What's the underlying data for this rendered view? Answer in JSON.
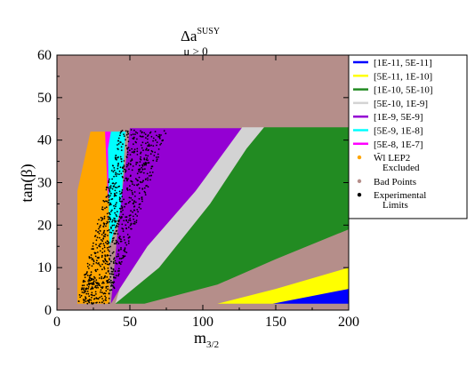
{
  "chart_data": {
    "type": "area",
    "title": {
      "base": "Δa",
      "sup": "SUSY"
    },
    "subtitle": "μ > 0",
    "xlabel": {
      "base": "m",
      "sub": "3/2"
    },
    "ylabel": "tan(β)",
    "xlim": [
      0,
      200
    ],
    "ylim": [
      0,
      60
    ],
    "x_ticks": [
      "0",
      "50",
      "100",
      "150",
      "200"
    ],
    "y_ticks": [
      "0",
      "10",
      "20",
      "30",
      "40",
      "50",
      "60"
    ],
    "background_region": {
      "name": "Bad Points",
      "color": "#b58e8a"
    },
    "regions": [
      {
        "name": "LEP2 Excluded",
        "color": "#ffa500",
        "polygon": [
          [
            14,
            1.5
          ],
          [
            14,
            28
          ],
          [
            23,
            42
          ],
          [
            33,
            42
          ],
          [
            36,
            40
          ],
          [
            36,
            1.5
          ]
        ]
      },
      {
        "name": "[5E-8, 1E-7]",
        "color": "#ff00ff",
        "polygon": [
          [
            33,
            42
          ],
          [
            37,
            42
          ],
          [
            37,
            28
          ],
          [
            35,
            26
          ]
        ]
      },
      {
        "name": "[5E-9, 1E-8]",
        "color": "#00ffff",
        "polygon": [
          [
            35,
            38
          ],
          [
            37,
            42
          ],
          [
            47,
            42
          ],
          [
            44,
            24
          ],
          [
            36,
            15
          ]
        ]
      },
      {
        "name": "[1E-9, 5E-9]",
        "color": "#9400d3",
        "polygon": [
          [
            37,
            1.5
          ],
          [
            43,
            5
          ],
          [
            62,
            15
          ],
          [
            95,
            28
          ],
          [
            128,
            42.8
          ],
          [
            50,
            42.8
          ],
          [
            42,
            20
          ]
        ]
      },
      {
        "name": "[5E-10, 1E-9]",
        "color": "#d3d3d3",
        "polygon": [
          [
            40,
            1.5
          ],
          [
            70,
            10
          ],
          [
            105,
            25
          ],
          [
            130,
            38
          ],
          [
            142,
            43
          ],
          [
            127,
            43
          ],
          [
            95,
            28
          ],
          [
            62,
            15
          ],
          [
            43,
            5
          ]
        ]
      },
      {
        "name": "[1E-10, 5E-10]",
        "color": "#228b22",
        "polygon": [
          [
            60,
            1.5
          ],
          [
            110,
            6
          ],
          [
            150,
            12
          ],
          [
            200,
            19
          ],
          [
            200,
            43
          ],
          [
            142,
            43
          ],
          [
            130,
            38
          ],
          [
            105,
            25
          ],
          [
            70,
            10
          ],
          [
            40,
            1.5
          ]
        ]
      },
      {
        "name": "[5E-11, 1E-10]",
        "color": "#ffff00",
        "polygon": [
          [
            110,
            1.5
          ],
          [
            150,
            5
          ],
          [
            200,
            10
          ],
          [
            200,
            5
          ],
          [
            160,
            2
          ],
          [
            148,
            1.5
          ]
        ]
      },
      {
        "name": "[1E-11, 5E-11]",
        "color": "#0000ff",
        "polygon": [
          [
            148,
            1.5
          ],
          [
            200,
            5
          ],
          [
            200,
            1.5
          ]
        ]
      }
    ],
    "experimental_limits": {
      "name": "Experimental Limits",
      "color": "#000000",
      "bands": [
        {
          "x_start_low": 14,
          "x_end_low": 36,
          "x_start_high": 44,
          "x_end_high": 76,
          "y_low": 1.5,
          "y_high": 42.5
        }
      ]
    },
    "legend": {
      "position": "right",
      "items": [
        {
          "label": "[1E-11, 5E-11]",
          "color": "#0000ff",
          "symbol": "line"
        },
        {
          "label": "[5E-11, 1E-10]",
          "color": "#ffff00",
          "symbol": "line"
        },
        {
          "label": "[1E-10, 5E-10]",
          "color": "#228b22",
          "symbol": "line"
        },
        {
          "label": "[5E-10, 1E-9]",
          "color": "#d3d3d3",
          "symbol": "line"
        },
        {
          "label": "[1E-9, 5E-9]",
          "color": "#9400d3",
          "symbol": "line"
        },
        {
          "label": "[5E-9, 1E-8]",
          "color": "#00ffff",
          "symbol": "line"
        },
        {
          "label": "[5E-8, 1E-7]",
          "color": "#ff00ff",
          "symbol": "line"
        },
        {
          "label": "W̃l LEP2",
          "label2": "Excluded",
          "color": "#ffa500",
          "symbol": "dot"
        },
        {
          "label": "Bad Points",
          "color": "#b58e8a",
          "symbol": "dot"
        },
        {
          "label": "Experimental",
          "label2": "Limits",
          "color": "#000000",
          "symbol": "dot"
        }
      ]
    },
    "grid": false
  }
}
